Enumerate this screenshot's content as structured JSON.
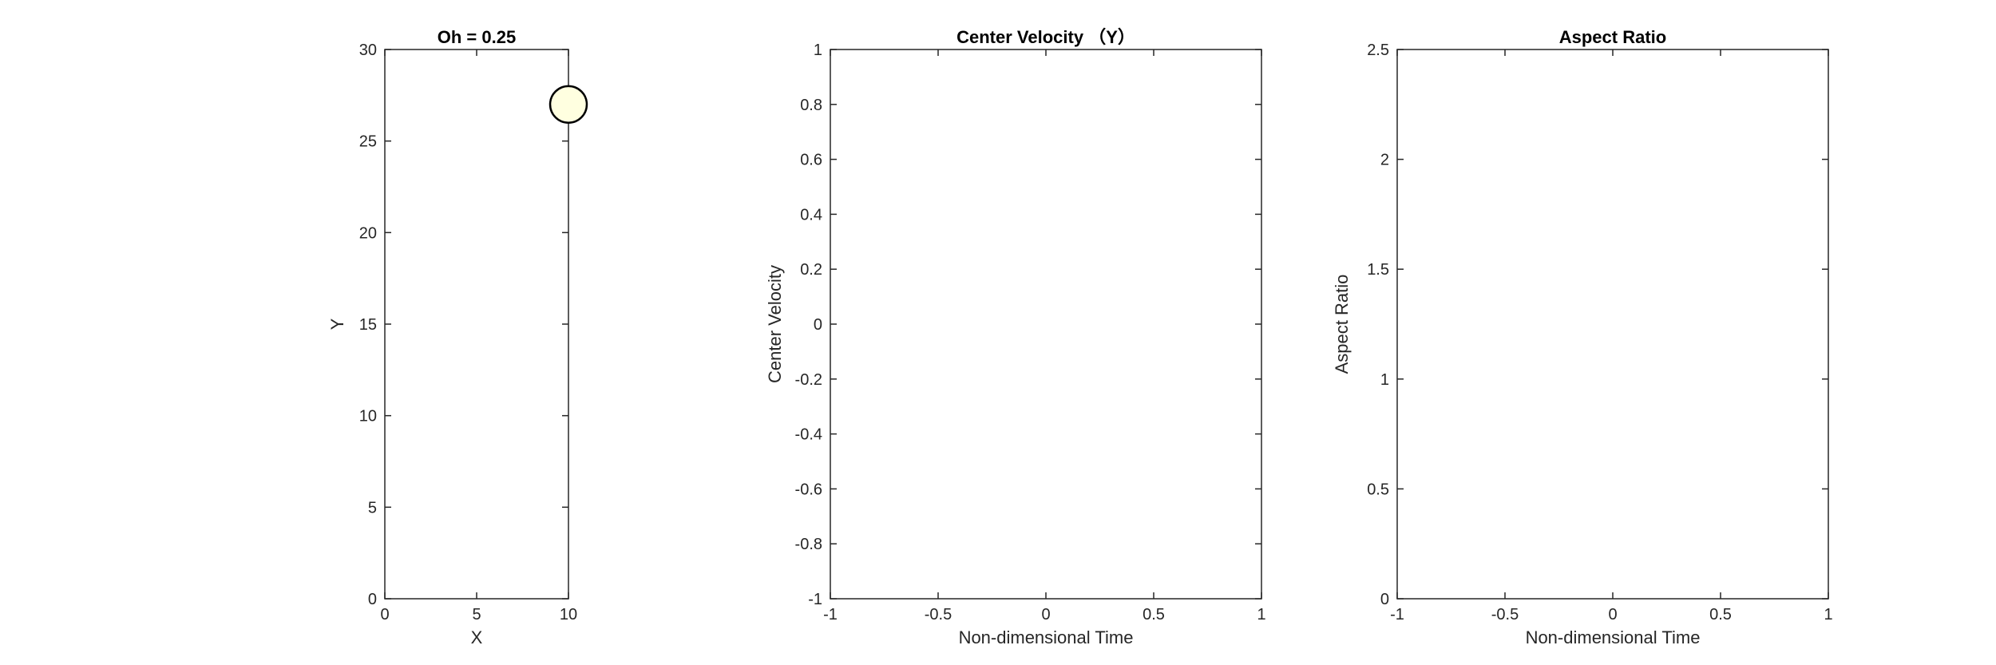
{
  "chart_data": [
    {
      "type": "scatter",
      "title": "Oh = 0.25",
      "xlabel": "X",
      "ylabel": "Y",
      "xlim": [
        0,
        10
      ],
      "ylim": [
        0,
        30
      ],
      "xticks": [
        0,
        5,
        10
      ],
      "yticks": [
        0,
        5,
        10,
        15,
        20,
        25,
        30
      ],
      "xtick_labels": [
        "0",
        "5",
        "10"
      ],
      "ytick_labels": [
        "0",
        "5",
        "10",
        "15",
        "20",
        "25",
        "30"
      ],
      "grid": false,
      "droplet": {
        "center_x": 10,
        "center_y": 27,
        "radius": 1,
        "fill": "#ffffe0",
        "edge": "#000000"
      }
    },
    {
      "type": "line",
      "title": "Center Velocity （Y）",
      "xlabel": "Non-dimensional Time",
      "ylabel": "Center Velocity",
      "xlim": [
        -1,
        1
      ],
      "ylim": [
        -1,
        1
      ],
      "xticks": [
        -1,
        -0.5,
        0,
        0.5,
        1
      ],
      "yticks": [
        -1,
        -0.8,
        -0.6,
        -0.4,
        -0.2,
        0,
        0.2,
        0.4,
        0.6,
        0.8,
        1
      ],
      "xtick_labels": [
        "-1",
        "-0.5",
        "0",
        "0.5",
        "1"
      ],
      "ytick_labels": [
        "-1",
        "-0.8",
        "-0.6",
        "-0.4",
        "-0.2",
        "0",
        "0.2",
        "0.4",
        "0.6",
        "0.8",
        "1"
      ],
      "grid": false,
      "series": []
    },
    {
      "type": "line",
      "title": "Aspect Ratio",
      "xlabel": "Non-dimensional Time",
      "ylabel": "Aspect Ratio",
      "xlim": [
        -1,
        1
      ],
      "ylim": [
        0,
        2.5
      ],
      "xticks": [
        -1,
        -0.5,
        0,
        0.5,
        1
      ],
      "yticks": [
        0,
        0.5,
        1,
        1.5,
        2,
        2.5
      ],
      "xtick_labels": [
        "-1",
        "-0.5",
        "0",
        "0.5",
        "1"
      ],
      "ytick_labels": [
        "0",
        "0.5",
        "1",
        "1.5",
        "2",
        "2.5"
      ],
      "grid": false,
      "series": []
    }
  ]
}
